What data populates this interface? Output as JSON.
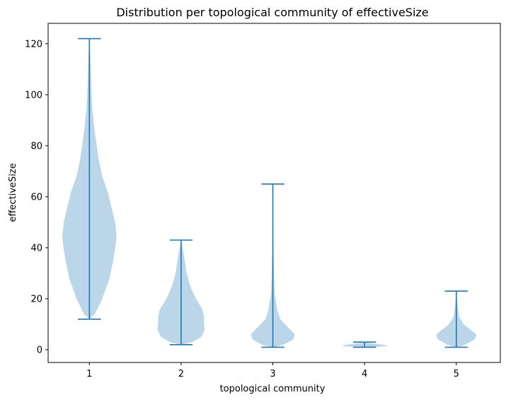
{
  "chart_data": {
    "type": "violin",
    "title": "Distribution per topological community of effectiveSize",
    "xlabel": "topological community",
    "ylabel": "effectiveSize",
    "ylim": [
      -5,
      128
    ],
    "xlim": [
      0.55,
      5.48
    ],
    "y_ticks": [
      0,
      20,
      40,
      60,
      80,
      100,
      120
    ],
    "categories": [
      "1",
      "2",
      "3",
      "4",
      "5"
    ],
    "grid": false,
    "colors": {
      "body": "#1f77b4",
      "body_alpha": 0.3,
      "lines": "#1f77b4"
    },
    "series": [
      {
        "category": "1",
        "min": 12,
        "max": 122,
        "profile": [
          [
            12,
            0.0
          ],
          [
            14,
            0.06
          ],
          [
            20,
            0.14
          ],
          [
            28,
            0.22
          ],
          [
            35,
            0.26
          ],
          [
            42,
            0.29
          ],
          [
            45,
            0.295
          ],
          [
            50,
            0.28
          ],
          [
            56,
            0.24
          ],
          [
            62,
            0.2
          ],
          [
            68,
            0.14
          ],
          [
            75,
            0.1
          ],
          [
            85,
            0.06
          ],
          [
            95,
            0.03
          ],
          [
            105,
            0.018
          ],
          [
            115,
            0.01
          ],
          [
            122,
            0.0
          ]
        ]
      },
      {
        "category": "2",
        "min": 2,
        "max": 43,
        "profile": [
          [
            2,
            0.0
          ],
          [
            3,
            0.12
          ],
          [
            5,
            0.22
          ],
          [
            8,
            0.26
          ],
          [
            10,
            0.25
          ],
          [
            13,
            0.25
          ],
          [
            16,
            0.23
          ],
          [
            20,
            0.16
          ],
          [
            25,
            0.1
          ],
          [
            30,
            0.06
          ],
          [
            35,
            0.04
          ],
          [
            40,
            0.015
          ],
          [
            43,
            0.0
          ]
        ]
      },
      {
        "category": "3",
        "min": 1,
        "max": 65,
        "profile": [
          [
            1,
            0.0
          ],
          [
            2,
            0.12
          ],
          [
            4,
            0.22
          ],
          [
            6,
            0.24
          ],
          [
            9,
            0.16
          ],
          [
            12,
            0.08
          ],
          [
            16,
            0.045
          ],
          [
            22,
            0.02
          ],
          [
            30,
            0.012
          ],
          [
            40,
            0.006
          ],
          [
            55,
            0.003
          ],
          [
            65,
            0.0
          ]
        ]
      },
      {
        "category": "4",
        "min": 1,
        "max": 3,
        "profile": [
          [
            1,
            0.0
          ],
          [
            1.3,
            0.22
          ],
          [
            1.7,
            0.25
          ],
          [
            2.2,
            0.15
          ],
          [
            2.6,
            0.05
          ],
          [
            3,
            0.0
          ]
        ]
      },
      {
        "category": "5",
        "min": 1,
        "max": 23,
        "profile": [
          [
            1,
            0.0
          ],
          [
            2,
            0.1
          ],
          [
            4,
            0.2
          ],
          [
            6,
            0.22
          ],
          [
            8,
            0.15
          ],
          [
            10,
            0.08
          ],
          [
            13,
            0.03
          ],
          [
            18,
            0.012
          ],
          [
            23,
            0.0
          ]
        ]
      }
    ]
  }
}
